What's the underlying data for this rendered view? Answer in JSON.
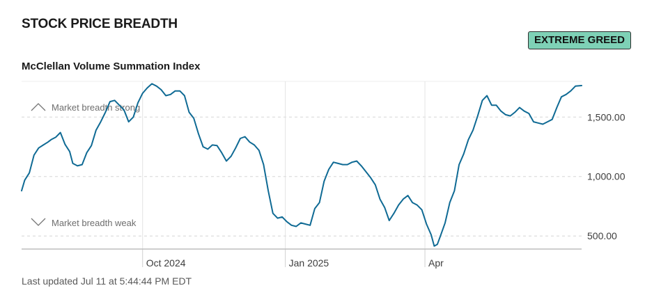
{
  "header": {
    "title": "STOCK PRICE BREADTH",
    "subtitle": "McClellan Volume Summation Index",
    "badge_label": "EXTREME GREED",
    "badge_color": "#7ed1b6"
  },
  "footer": {
    "last_updated": "Last updated Jul 11 at 5:44:44 PM EDT"
  },
  "chart_data": {
    "type": "line",
    "title": "McClellan Volume Summation Index",
    "line_color": "#0f6a94",
    "x_range": [
      "2024-07-15",
      "2025-07-11"
    ],
    "ylim": [
      390,
      1800
    ],
    "y_ticks": [
      {
        "value": 500,
        "label": "500.00"
      },
      {
        "value": 1000,
        "label": "1,000.00"
      },
      {
        "value": 1500,
        "label": "1,500.00"
      }
    ],
    "x_ticks": [
      {
        "date": "2024-10-01",
        "label": "Oct 2024"
      },
      {
        "date": "2025-01-01",
        "label": "Jan 2025"
      },
      {
        "date": "2025-04-01",
        "label": "Apr"
      }
    ],
    "annotations": {
      "strong": "Market breadth strong",
      "weak": "Market breadth weak"
    },
    "grid": true,
    "series": [
      {
        "points": [
          [
            "2024-07-15",
            880
          ],
          [
            "2024-07-17",
            970
          ],
          [
            "2024-07-20",
            1030
          ],
          [
            "2024-07-23",
            1180
          ],
          [
            "2024-07-26",
            1240
          ],
          [
            "2024-07-29",
            1265
          ],
          [
            "2024-08-01",
            1290
          ],
          [
            "2024-08-03",
            1310
          ],
          [
            "2024-08-06",
            1330
          ],
          [
            "2024-08-09",
            1370
          ],
          [
            "2024-08-12",
            1270
          ],
          [
            "2024-08-15",
            1210
          ],
          [
            "2024-08-17",
            1110
          ],
          [
            "2024-08-20",
            1090
          ],
          [
            "2024-08-23",
            1100
          ],
          [
            "2024-08-26",
            1200
          ],
          [
            "2024-08-29",
            1260
          ],
          [
            "2024-09-01",
            1390
          ],
          [
            "2024-09-04",
            1460
          ],
          [
            "2024-09-07",
            1540
          ],
          [
            "2024-09-10",
            1630
          ],
          [
            "2024-09-13",
            1640
          ],
          [
            "2024-09-16",
            1600
          ],
          [
            "2024-09-19",
            1560
          ],
          [
            "2024-09-22",
            1460
          ],
          [
            "2024-09-25",
            1500
          ],
          [
            "2024-09-28",
            1620
          ],
          [
            "2024-10-01",
            1700
          ],
          [
            "2024-10-04",
            1745
          ],
          [
            "2024-10-07",
            1780
          ],
          [
            "2024-10-10",
            1760
          ],
          [
            "2024-10-13",
            1730
          ],
          [
            "2024-10-16",
            1680
          ],
          [
            "2024-10-19",
            1690
          ],
          [
            "2024-10-22",
            1720
          ],
          [
            "2024-10-25",
            1720
          ],
          [
            "2024-10-28",
            1680
          ],
          [
            "2024-10-31",
            1540
          ],
          [
            "2024-11-03",
            1490
          ],
          [
            "2024-11-06",
            1360
          ],
          [
            "2024-11-09",
            1250
          ],
          [
            "2024-11-12",
            1230
          ],
          [
            "2024-11-15",
            1265
          ],
          [
            "2024-11-18",
            1260
          ],
          [
            "2024-11-21",
            1200
          ],
          [
            "2024-11-24",
            1130
          ],
          [
            "2024-11-27",
            1170
          ],
          [
            "2024-11-30",
            1240
          ],
          [
            "2024-12-03",
            1320
          ],
          [
            "2024-12-06",
            1335
          ],
          [
            "2024-12-09",
            1290
          ],
          [
            "2024-12-12",
            1265
          ],
          [
            "2024-12-15",
            1220
          ],
          [
            "2024-12-18",
            1100
          ],
          [
            "2024-12-21",
            880
          ],
          [
            "2024-12-24",
            690
          ],
          [
            "2024-12-27",
            650
          ],
          [
            "2024-12-30",
            660
          ],
          [
            "2025-01-02",
            620
          ],
          [
            "2025-01-05",
            590
          ],
          [
            "2025-01-08",
            580
          ],
          [
            "2025-01-11",
            610
          ],
          [
            "2025-01-14",
            600
          ],
          [
            "2025-01-17",
            590
          ],
          [
            "2025-01-20",
            730
          ],
          [
            "2025-01-23",
            780
          ],
          [
            "2025-01-26",
            960
          ],
          [
            "2025-01-29",
            1060
          ],
          [
            "2025-02-01",
            1120
          ],
          [
            "2025-02-04",
            1110
          ],
          [
            "2025-02-07",
            1100
          ],
          [
            "2025-02-10",
            1100
          ],
          [
            "2025-02-13",
            1120
          ],
          [
            "2025-02-16",
            1130
          ],
          [
            "2025-02-19",
            1090
          ],
          [
            "2025-02-22",
            1040
          ],
          [
            "2025-02-25",
            990
          ],
          [
            "2025-02-28",
            930
          ],
          [
            "2025-03-03",
            810
          ],
          [
            "2025-03-06",
            740
          ],
          [
            "2025-03-09",
            630
          ],
          [
            "2025-03-12",
            690
          ],
          [
            "2025-03-15",
            760
          ],
          [
            "2025-03-18",
            810
          ],
          [
            "2025-03-21",
            840
          ],
          [
            "2025-03-24",
            780
          ],
          [
            "2025-03-27",
            760
          ],
          [
            "2025-03-30",
            720
          ],
          [
            "2025-04-02",
            600
          ],
          [
            "2025-04-05",
            510
          ],
          [
            "2025-04-07",
            415
          ],
          [
            "2025-04-09",
            430
          ],
          [
            "2025-04-11",
            500
          ],
          [
            "2025-04-14",
            610
          ],
          [
            "2025-04-17",
            780
          ],
          [
            "2025-04-20",
            880
          ],
          [
            "2025-04-23",
            1100
          ],
          [
            "2025-04-26",
            1190
          ],
          [
            "2025-04-29",
            1310
          ],
          [
            "2025-05-02",
            1390
          ],
          [
            "2025-05-05",
            1510
          ],
          [
            "2025-05-08",
            1640
          ],
          [
            "2025-05-11",
            1680
          ],
          [
            "2025-05-14",
            1600
          ],
          [
            "2025-05-17",
            1600
          ],
          [
            "2025-05-20",
            1550
          ],
          [
            "2025-05-23",
            1520
          ],
          [
            "2025-05-26",
            1510
          ],
          [
            "2025-05-29",
            1540
          ],
          [
            "2025-06-01",
            1580
          ],
          [
            "2025-06-04",
            1550
          ],
          [
            "2025-06-07",
            1530
          ],
          [
            "2025-06-10",
            1460
          ],
          [
            "2025-06-13",
            1450
          ],
          [
            "2025-06-16",
            1440
          ],
          [
            "2025-06-19",
            1460
          ],
          [
            "2025-06-22",
            1480
          ],
          [
            "2025-06-25",
            1580
          ],
          [
            "2025-06-28",
            1670
          ],
          [
            "2025-07-01",
            1690
          ],
          [
            "2025-07-04",
            1720
          ],
          [
            "2025-07-07",
            1760
          ],
          [
            "2025-07-11",
            1765
          ]
        ]
      }
    ]
  }
}
